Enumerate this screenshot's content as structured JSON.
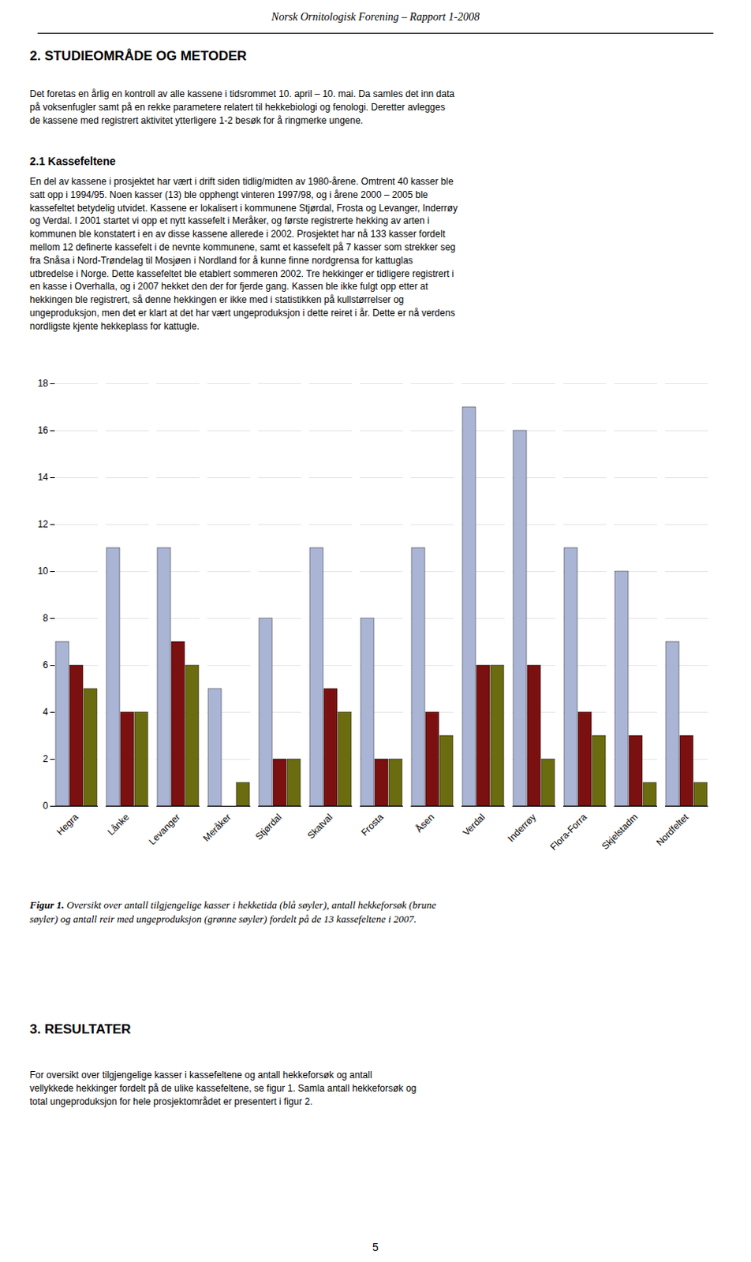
{
  "page_title": "Norsk Ornitologisk Forening – Rapport 1-2008",
  "section_title": "2. STUDIEOMRÅDE OG METODER",
  "intro_text": "Det foretas en årlig en kontroll av alle kassene i tidsrommet 10. april – 10. mai. Da samles det inn data\npå voksenfugler samt på en rekke parametere relatert til hekkebiologi og fenologi. Deretter avlegges\nde kassene med registrert aktivitet ytterligere 1-2 besøk for å ringmerke ungene.",
  "sub_title": "2.1 Kassefeltene",
  "body2": "En del av kassene i prosjektet har vært i drift siden tidlig/midten av 1980-årene. Omtrent 40 kasser ble\nsatt opp i 1994/95. Noen kasser (13) ble opphengt vinteren 1997/98, og i årene 2000 – 2005 ble\nkassefeltet betydelig utvidet. Kassene er lokalisert i kommunene Stjørdal, Frosta og Levanger, Inderrøy\nog Verdal. I 2001 startet vi opp et nytt kassefelt i Meråker, og første registrerte hekking av arten i\nkommunen ble konstatert i en av disse kassene allerede i 2002. Prosjektet har nå 133 kasser fordelt\nmellom 12 definerte kassefelt i de nevnte kommunene, samt et kassefelt på 7 kasser som strekker seg\nfra Snåsa i Nord-Trøndelag til Mosjøen i Nordland for å kunne finne nordgrensa for kattuglas\nutbredelse i Norge. Dette kassefeltet ble etablert sommeren 2002. Tre hekkinger er tidligere registrert i\nen kasse i Overhalla, og i 2007 hekket den der for fjerde gang. Kassen ble ikke fulgt opp etter at\nhekkingen ble registrert, så denne hekkingen er ikke med i statistikken på kullstørrelser og\nungeproduksjon, men det er klart at det har vært ungeproduksjon i dette reiret i år. Dette er nå verdens\nnordligste kjente hekkeplass for kattugle.",
  "caption_bold": "Figur 1.",
  "caption_rest": " Oversikt over antall tilgjengelige kasser i hekketida (blå søyler), antall hekkeforsøk (brune\nsøyler) og antall reir med ungeproduksjon (grønne søyler) fordelt på de 13 kassefeltene i 2007.",
  "results_title": "3. RESULTATER",
  "results_text": "For oversikt over tilgjengelige kasser i kassefeltene og antall hekkeforsøk og antall\nvellykkede hekkinger fordelt på de ulike kassefeltene, se figur 1. Samla antall hekkeforsøk og\ntotal ungeproduksjon for hele prosjektområdet er presentert i figur 2.",
  "page_number": "5",
  "chart_data": {
    "type": "bar",
    "categories": [
      "Hegra",
      "Lånke",
      "Levanger",
      "Meråker",
      "Stjørdal",
      "Skatval",
      "Frosta",
      "Åsen",
      "Verdal",
      "Inderrøy",
      "Flora-Forra",
      "Skjelstadm",
      "Nordfeltet"
    ],
    "series": [
      {
        "color": "#aab4d4",
        "values": [
          7,
          11,
          11,
          5,
          8,
          11,
          8,
          11,
          17,
          16,
          11,
          10,
          7
        ]
      },
      {
        "color": "#7b1010",
        "values": [
          6,
          4,
          7,
          0,
          2,
          5,
          2,
          4,
          6,
          6,
          4,
          3,
          3
        ]
      },
      {
        "color": "#6b6b10",
        "values": [
          5,
          4,
          6,
          1,
          2,
          4,
          2,
          3,
          6,
          2,
          3,
          1,
          1
        ]
      }
    ],
    "ylim": [
      0,
      18
    ],
    "yticks": [
      0,
      2,
      4,
      6,
      8,
      10,
      12,
      14,
      16,
      18
    ],
    "grid": true
  }
}
